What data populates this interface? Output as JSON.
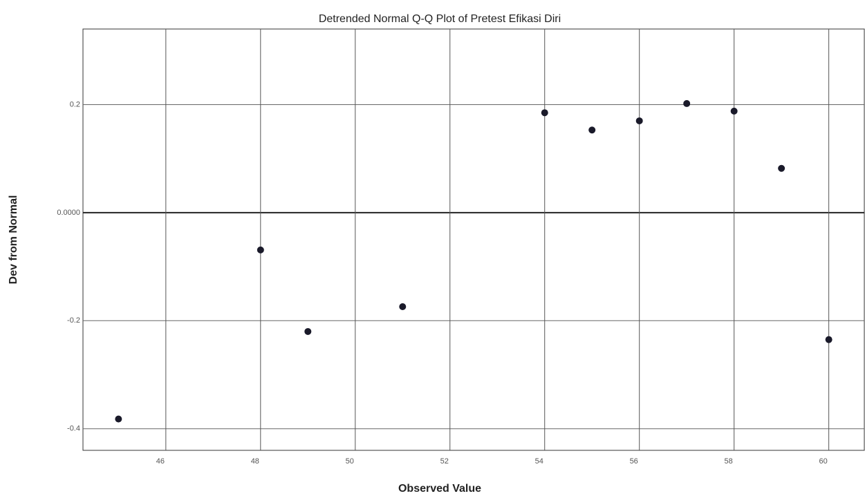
{
  "chart_data": {
    "type": "scatter",
    "title": "Detrended Normal Q-Q Plot of Pretest Efikasi Diri",
    "x_label": "Observed Value",
    "y_label": "Dev from Normal",
    "x": [
      45,
      48,
      49,
      51,
      54,
      55,
      56,
      57,
      58,
      59,
      60
    ],
    "series": [
      {
        "color": "#1a1a2a",
        "values": [
          -0.382,
          -0.069,
          -0.22,
          -0.174,
          0.185,
          0.153,
          0.17,
          0.202,
          0.188,
          0.082,
          -0.235
        ]
      }
    ],
    "xlim": [
      44.25,
      60.75
    ],
    "ylim": [
      -0.44,
      0.34
    ],
    "xticks": [
      46,
      48,
      50,
      52,
      54,
      56,
      58,
      60
    ],
    "yticks": [
      -0.4,
      -0.2,
      {
        "value": 0,
        "label": "0.0000"
      },
      0.2
    ],
    "grid": true
  }
}
